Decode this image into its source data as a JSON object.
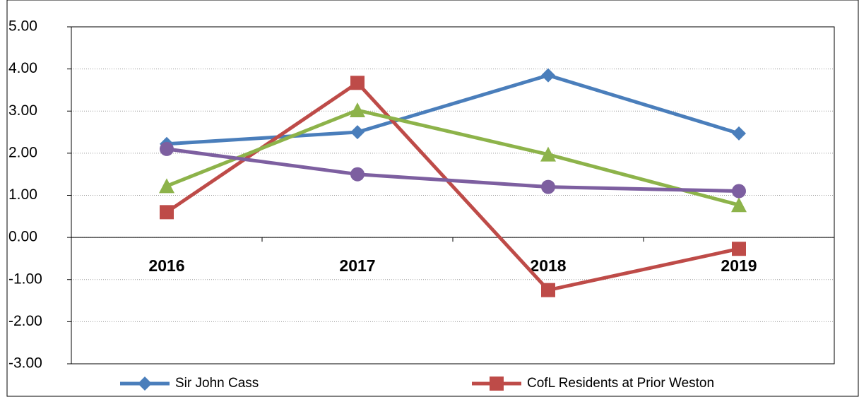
{
  "chart_data": {
    "type": "line",
    "categories": [
      "2016",
      "2017",
      "2018",
      "2019"
    ],
    "series": [
      {
        "name": "Sir John Cass",
        "color": "#4a7ebb",
        "marker": "diamond",
        "values": [
          2.22,
          2.5,
          3.85,
          2.47
        ]
      },
      {
        "name": "CofL Residents at Prior Weston",
        "color": "#be4b48",
        "marker": "square",
        "values": [
          0.6,
          3.67,
          -1.25,
          -0.27
        ]
      },
      {
        "color": "#8db34a",
        "marker": "triangle",
        "values": [
          1.22,
          3.02,
          1.97,
          0.77
        ]
      },
      {
        "color": "#7d5fa0",
        "marker": "circle",
        "values": [
          2.1,
          1.5,
          1.2,
          1.1
        ]
      }
    ],
    "ylim": [
      -3,
      5
    ],
    "yticks": [
      {
        "value": 5,
        "label": "5.00"
      },
      {
        "value": 4,
        "label": "4.00"
      },
      {
        "value": 3,
        "label": "3.00"
      },
      {
        "value": 2,
        "label": "2.00"
      },
      {
        "value": 1,
        "label": "1.00"
      },
      {
        "value": 0,
        "label": "0.00"
      },
      {
        "value": -1,
        "label": "-1.00"
      },
      {
        "value": -2,
        "label": "-2.00"
      },
      {
        "value": -3,
        "label": "-3.00"
      }
    ],
    "grid": true
  }
}
